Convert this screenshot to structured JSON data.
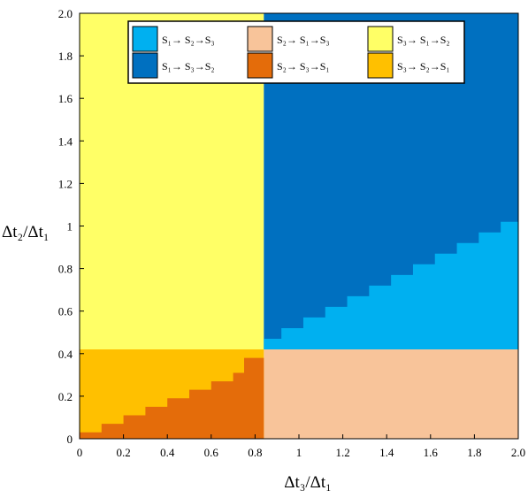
{
  "chart_data": {
    "type": "heatmap",
    "xlabel": "Δt₃/Δt₁",
    "ylabel": "Δt₂/Δt₁",
    "xlim": [
      0,
      2.0
    ],
    "ylim": [
      0,
      2.0
    ],
    "x_ticks": [
      "0",
      "0.2",
      "0.4",
      "0.6",
      "0.8",
      "1",
      "1.2",
      "1.4",
      "1.6",
      "1.8",
      "2.0"
    ],
    "x_tick_values": [
      0,
      0.2,
      0.4,
      0.6,
      0.8,
      1.0,
      1.2,
      1.4,
      1.6,
      1.8,
      2.0
    ],
    "y_ticks": [
      "0",
      "0.2",
      "0.4",
      "0.6",
      "0.8",
      "1",
      "1.2",
      "1.4",
      "1.6",
      "1.8",
      "2.0"
    ],
    "y_tick_values": [
      0,
      0.2,
      0.4,
      0.6,
      0.8,
      1.0,
      1.2,
      1.4,
      1.6,
      1.8,
      2.0
    ],
    "grid": false,
    "legend_position": "top",
    "categories": [
      {
        "id": "s1s2s3",
        "label": "S₁→ S₂→S₃",
        "color": "#00b0f0"
      },
      {
        "id": "s1s3s2",
        "label": "S₁→ S₃→S₂",
        "color": "#0070c0"
      },
      {
        "id": "s2s1s3",
        "label": "S₂→ S₁→S₃",
        "color": "#f8c49a"
      },
      {
        "id": "s2s3s1",
        "label": "S₂→ S₃→S₁",
        "color": "#e46c0a"
      },
      {
        "id": "s3s1s2",
        "label": "S₃→ S₁→S₂",
        "color": "#ffff66"
      },
      {
        "id": "s3s2s1",
        "label": "S₃→ S₂→S₁",
        "color": "#ffc000"
      }
    ],
    "regions": {
      "x_split": 0.84,
      "y_split": 0.42,
      "upper_left": "s3s1s2",
      "lower_right": "s2s1s3",
      "upper_right_above_boundary": "s1s3s2",
      "upper_right_below_boundary": "s1s2s3",
      "lower_left_above_boundary": "s3s2s1",
      "lower_left_below_boundary": "s2s3s1"
    },
    "boundary_upper_right": [
      [
        0.84,
        0.47
      ],
      [
        0.92,
        0.52
      ],
      [
        1.02,
        0.57
      ],
      [
        1.12,
        0.62
      ],
      [
        1.22,
        0.67
      ],
      [
        1.32,
        0.72
      ],
      [
        1.42,
        0.77
      ],
      [
        1.52,
        0.82
      ],
      [
        1.62,
        0.87
      ],
      [
        1.72,
        0.92
      ],
      [
        1.82,
        0.97
      ],
      [
        1.92,
        1.02
      ],
      [
        2.0,
        1.07
      ]
    ],
    "boundary_lower_left": [
      [
        0.0,
        0.03
      ],
      [
        0.1,
        0.07
      ],
      [
        0.2,
        0.11
      ],
      [
        0.3,
        0.15
      ],
      [
        0.4,
        0.19
      ],
      [
        0.5,
        0.23
      ],
      [
        0.6,
        0.27
      ],
      [
        0.7,
        0.31
      ],
      [
        0.75,
        0.38
      ],
      [
        0.84,
        0.42
      ]
    ]
  }
}
